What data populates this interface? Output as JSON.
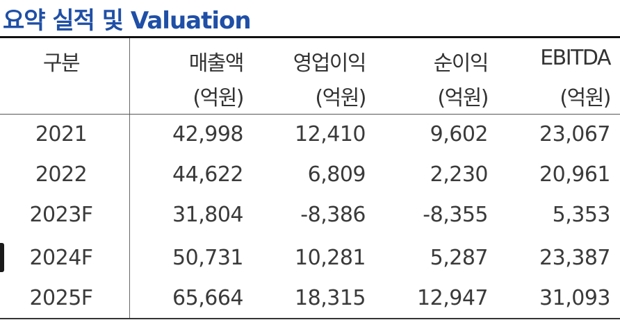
{
  "title": "요약 실적 및 Valuation",
  "header": {
    "col0": "구분",
    "col1": "매출액",
    "col2": "영업이익",
    "col3": "순이익",
    "col4": "EBITDA",
    "unit": "(억원)"
  },
  "rows": [
    {
      "year": "2021",
      "revenue": "42,998",
      "op_income": "12,410",
      "net_income": "9,602",
      "ebitda": "23,067"
    },
    {
      "year": "2022",
      "revenue": "44,622",
      "op_income": "6,809",
      "net_income": "2,230",
      "ebitda": "20,961"
    },
    {
      "year": "2023F",
      "revenue": "31,804",
      "op_income": "-8,386",
      "net_income": "-8,355",
      "ebitda": "5,353"
    },
    {
      "year": "2024F",
      "revenue": "50,731",
      "op_income": "10,281",
      "net_income": "5,287",
      "ebitda": "23,387"
    },
    {
      "year": "2025F",
      "revenue": "65,664",
      "op_income": "18,315",
      "net_income": "12,947",
      "ebitda": "31,093"
    }
  ],
  "colors": {
    "title": "#1f4fa6",
    "text": "#3a3a3a",
    "rule": "#111111"
  }
}
